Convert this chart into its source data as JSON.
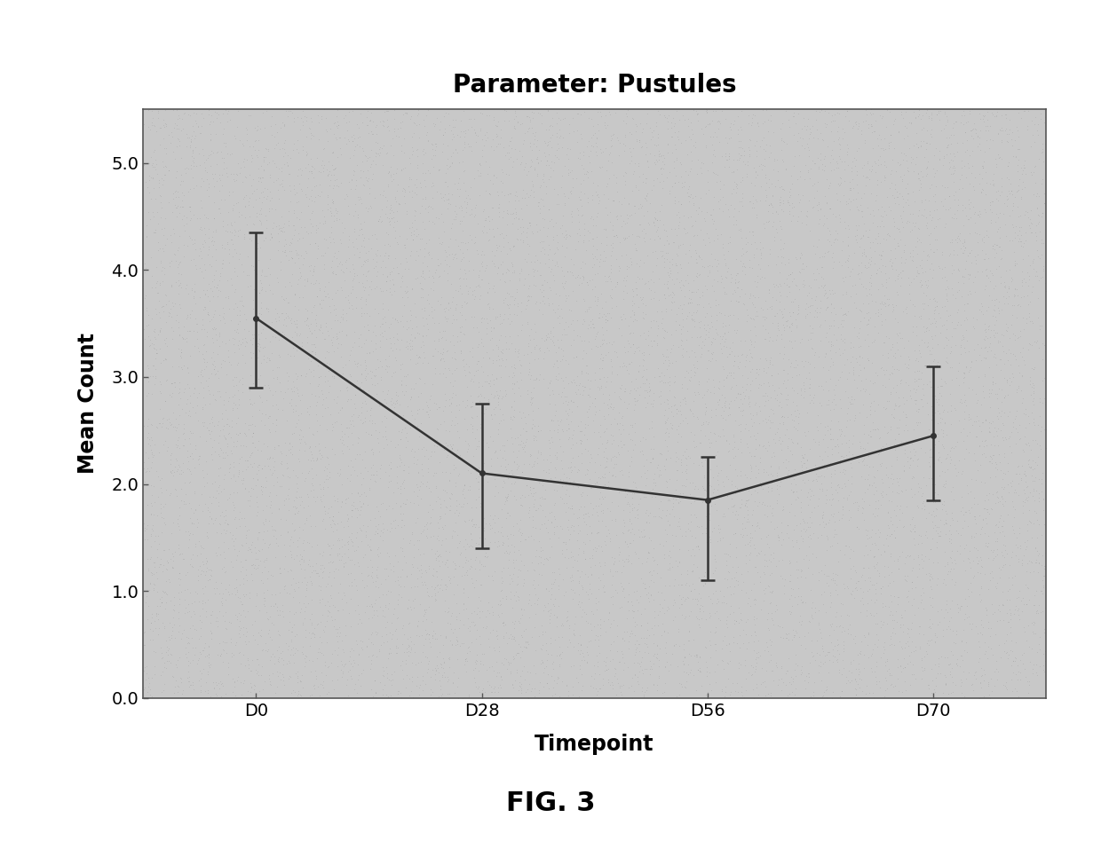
{
  "title": "Parameter: Pustules",
  "xlabel": "Timepoint",
  "ylabel": "Mean Count",
  "categories": [
    "D0",
    "D28",
    "D56",
    "D70"
  ],
  "means": [
    3.55,
    2.1,
    1.85,
    2.45
  ],
  "errors_upper": [
    0.8,
    0.65,
    0.4,
    0.65
  ],
  "errors_lower": [
    0.65,
    0.7,
    0.75,
    0.6
  ],
  "ylim": [
    0.0,
    5.5
  ],
  "yticks": [
    0.0,
    1.0,
    2.0,
    3.0,
    4.0,
    5.0
  ],
  "plot_bg_color": "#c8c8c8",
  "line_color": "#333333",
  "error_color": "#333333",
  "title_fontsize": 20,
  "label_fontsize": 17,
  "tick_fontsize": 14,
  "fig_caption": "FIG. 3",
  "fig_caption_fontsize": 22
}
